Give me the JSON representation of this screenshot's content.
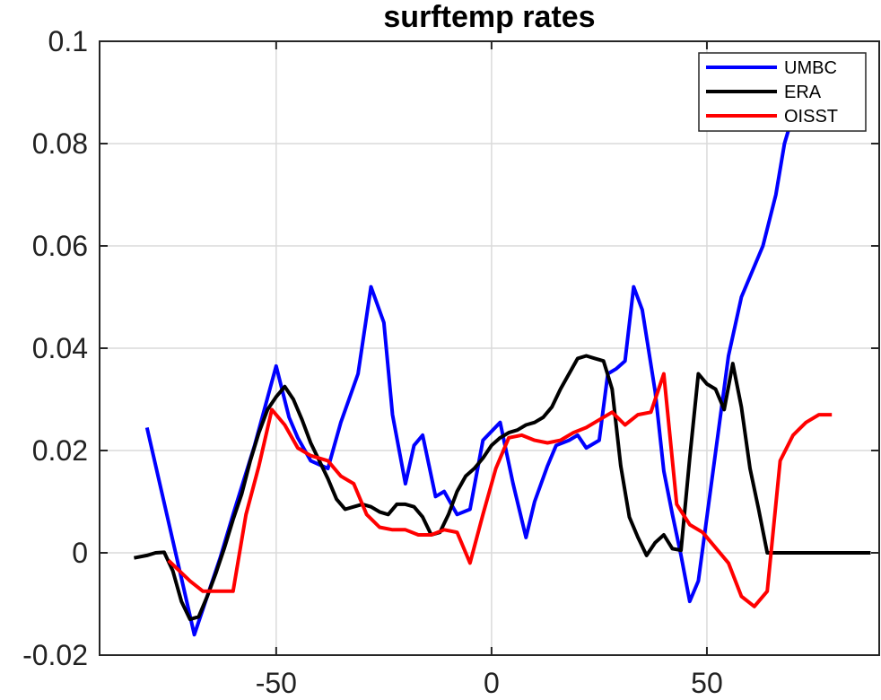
{
  "chart_data": {
    "type": "line",
    "title": "surftemp rates",
    "xlabel": "",
    "ylabel": "",
    "xlim": [
      -91,
      90
    ],
    "ylim": [
      -0.02,
      0.1
    ],
    "xticks": [
      -50,
      0,
      50
    ],
    "xtick_labels": [
      "-50",
      "0",
      "50"
    ],
    "yticks": [
      -0.02,
      0,
      0.02,
      0.04,
      0.06,
      0.08,
      0.1
    ],
    "ytick_labels": [
      "-0.02",
      "0",
      "0.02",
      "0.04",
      "0.06",
      "0.08",
      "0.1"
    ],
    "grid": true,
    "legend_position": "top-right",
    "series": [
      {
        "name": "UMBC",
        "color": "#0000FF",
        "x": [
          -80,
          -69,
          -63,
          -60,
          -55,
          -50,
          -47,
          -45,
          -42,
          -38,
          -35,
          -31,
          -28,
          -25,
          -23,
          -20,
          -18,
          -16,
          -13,
          -11,
          -8,
          -5,
          -2,
          2,
          5,
          8,
          10,
          13,
          15,
          18,
          20,
          22,
          25,
          27,
          29,
          31,
          33,
          35,
          38,
          40,
          42,
          44,
          46,
          48,
          55,
          58,
          63,
          66,
          68,
          71,
          73,
          76,
          80
        ],
        "y": [
          0.0245,
          -0.016,
          -0.001,
          0.0075,
          0.021,
          0.0365,
          0.0265,
          0.0225,
          0.018,
          0.0165,
          0.0255,
          0.035,
          0.052,
          0.045,
          0.027,
          0.0135,
          0.021,
          0.023,
          0.011,
          0.012,
          0.0075,
          0.0085,
          0.022,
          0.0255,
          0.0135,
          0.003,
          0.01,
          0.017,
          0.021,
          0.022,
          0.023,
          0.0205,
          0.022,
          0.035,
          0.036,
          0.0375,
          0.052,
          0.0475,
          0.0315,
          0.016,
          0.0075,
          -0.0005,
          -0.0095,
          -0.0055,
          0.0385,
          0.05,
          0.06,
          0.07,
          0.08,
          0.0885,
          0.0885,
          0.0885,
          0.0885
        ]
      },
      {
        "name": "ERA",
        "color": "#000000",
        "x": [
          -83,
          -80,
          -78,
          -76,
          -74,
          -72,
          -70,
          -68,
          -66,
          -64,
          -62,
          -60,
          -58,
          -56,
          -54,
          -52,
          -50,
          -48,
          -46,
          -44,
          -42,
          -40,
          -38,
          -36,
          -34,
          -32,
          -30,
          -28,
          -26,
          -24,
          -22,
          -20,
          -18,
          -16,
          -14,
          -12,
          -10,
          -8,
          -6,
          -4,
          -2,
          0,
          2,
          4,
          6,
          8,
          10,
          12,
          14,
          16,
          18,
          20,
          22,
          24,
          26,
          28,
          30,
          32,
          34,
          36,
          38,
          40,
          42,
          44,
          46,
          48,
          50,
          52,
          54,
          56,
          58,
          60,
          62,
          64,
          66,
          68,
          70,
          72,
          74,
          76,
          78,
          80,
          82,
          84,
          86,
          88
        ],
        "y": [
          -0.001,
          -0.0005,
          0,
          0.0001,
          -0.0035,
          -0.0095,
          -0.013,
          -0.0125,
          -0.0085,
          -0.004,
          0.001,
          0.0065,
          0.0115,
          0.018,
          0.0235,
          0.028,
          0.0305,
          0.0325,
          0.03,
          0.026,
          0.0215,
          0.018,
          0.0145,
          0.0105,
          0.0085,
          0.009,
          0.0095,
          0.009,
          0.008,
          0.0075,
          0.0095,
          0.0095,
          0.009,
          0.007,
          0.0035,
          0.004,
          0.0075,
          0.012,
          0.015,
          0.0165,
          0.0185,
          0.021,
          0.0225,
          0.0235,
          0.024,
          0.025,
          0.0255,
          0.0265,
          0.0285,
          0.032,
          0.035,
          0.038,
          0.0385,
          0.038,
          0.0375,
          0.032,
          0.017,
          0.007,
          0.003,
          -0.0005,
          0.002,
          0.0035,
          0.0008,
          0.0005,
          0.0185,
          0.035,
          0.033,
          0.032,
          0.028,
          0.037,
          0.0285,
          0.0165,
          0.0085,
          0,
          0,
          0,
          0,
          0,
          0,
          0,
          0,
          0,
          0,
          0,
          0,
          0
        ]
      },
      {
        "name": "OISST",
        "color": "#FF0000",
        "x": [
          -75,
          -70,
          -67,
          -63,
          -60,
          -57,
          -54,
          -51,
          -48,
          -45,
          -42,
          -38,
          -35,
          -32,
          -29,
          -26,
          -23,
          -20,
          -17,
          -14,
          -11,
          -8,
          -5,
          -2,
          1,
          4,
          7,
          10,
          13,
          16,
          19,
          22,
          25,
          28,
          31,
          34,
          37,
          40,
          43,
          46,
          49,
          52,
          55,
          58,
          61,
          64,
          67,
          70,
          73,
          76,
          79
        ],
        "y": [
          -0.0015,
          -0.0055,
          -0.0075,
          -0.0075,
          -0.0075,
          0.0075,
          0.017,
          0.028,
          0.025,
          0.0205,
          0.019,
          0.018,
          0.015,
          0.0135,
          0.0075,
          0.005,
          0.0045,
          0.0045,
          0.0035,
          0.0035,
          0.0045,
          0.004,
          -0.002,
          0.0075,
          0.0165,
          0.0225,
          0.023,
          0.022,
          0.0215,
          0.022,
          0.0235,
          0.0245,
          0.026,
          0.0275,
          0.025,
          0.027,
          0.0275,
          0.035,
          0.0095,
          0.0055,
          0.004,
          0.001,
          -0.002,
          -0.0085,
          -0.0105,
          -0.0075,
          0.018,
          0.023,
          0.0255,
          0.027,
          0.027
        ]
      }
    ]
  }
}
